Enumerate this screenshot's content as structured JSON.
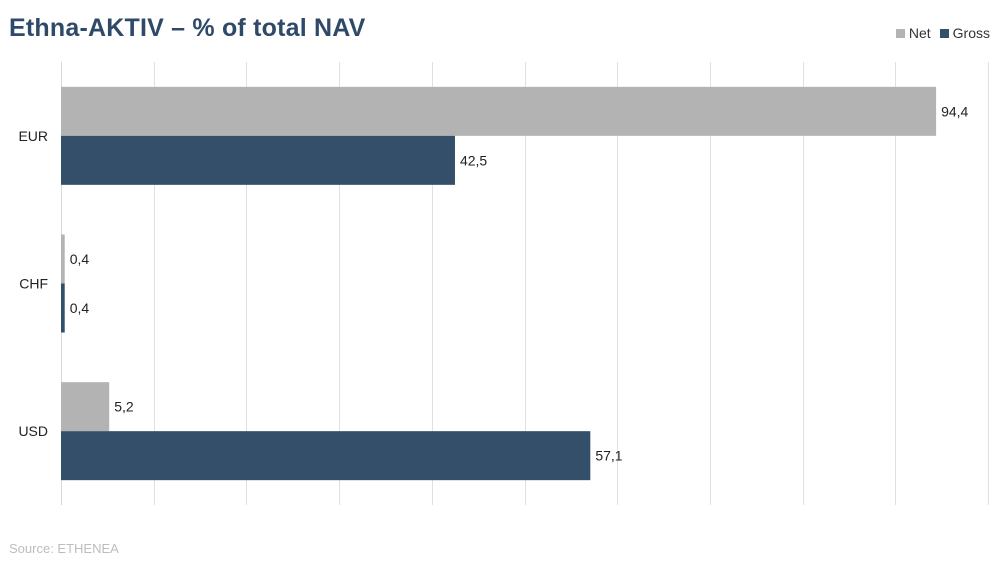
{
  "chart_data": {
    "type": "bar",
    "orientation": "horizontal",
    "title": "Ethna-AKTIV – % of total NAV",
    "categories": [
      "EUR",
      "CHF",
      "USD"
    ],
    "series": [
      {
        "name": "Net",
        "color": "#b3b3b3",
        "values": [
          94.4,
          0.4,
          5.2
        ],
        "labels": [
          "94,4",
          "0,4",
          "5,2"
        ]
      },
      {
        "name": "Gross",
        "color": "#334f6a",
        "values": [
          42.5,
          0.4,
          57.1
        ],
        "labels": [
          "42,5",
          "0,4",
          "57,1"
        ]
      }
    ],
    "xlim": [
      0,
      100
    ],
    "grid": true,
    "legend": "top-right",
    "source": "Source: ETHENEA"
  }
}
